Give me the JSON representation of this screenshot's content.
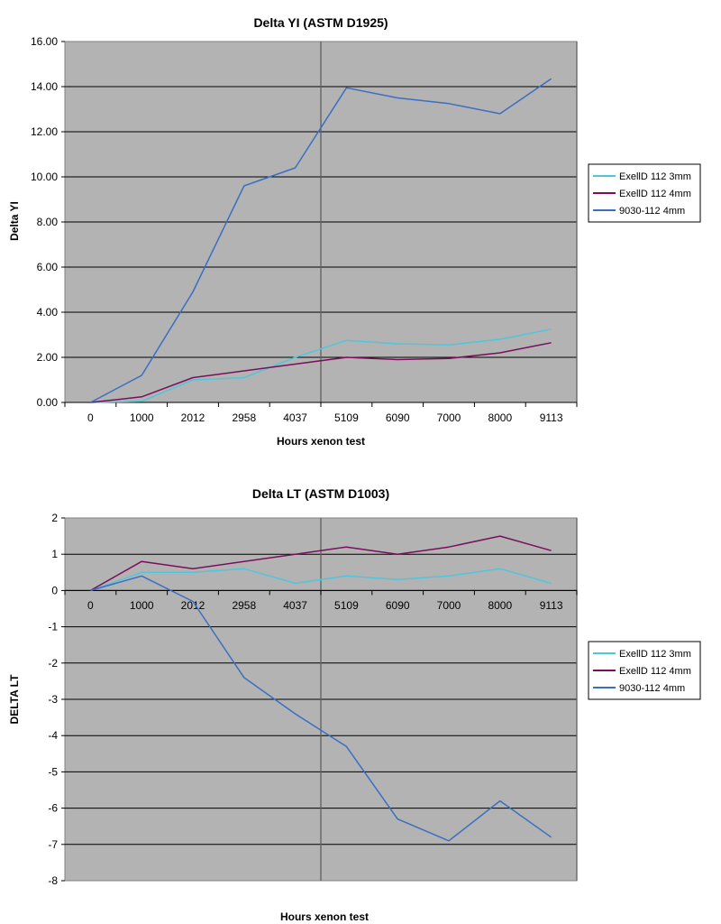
{
  "chart_data": [
    {
      "type": "line",
      "title": "Delta YI (ASTM D1925)",
      "xlabel": "Hours xenon test",
      "ylabel": "Delta YI",
      "categories": [
        "0",
        "1000",
        "2012",
        "2958",
        "4037",
        "5109",
        "6090",
        "7000",
        "8000",
        "9113"
      ],
      "ylim": [
        0,
        16
      ],
      "ytick_step": 2,
      "ytick_labels": [
        "0.00",
        "2.00",
        "4.00",
        "6.00",
        "8.00",
        "10.00",
        "12.00",
        "14.00",
        "16.00"
      ],
      "vertical_markers_at_category": [
        "4037",
        "9113"
      ],
      "plot_background": "#b3b3b3",
      "grid": true,
      "legend_position": "right",
      "series": [
        {
          "name": "ExellD 112 3mm",
          "color": "#4fc6dc",
          "values": [
            0,
            0.05,
            1.0,
            1.1,
            2.0,
            2.75,
            2.6,
            2.55,
            2.8,
            3.25
          ]
        },
        {
          "name": "ExellD 112 4mm",
          "color": "#7b0f5c",
          "values": [
            0,
            0.25,
            1.1,
            1.4,
            1.7,
            2.0,
            1.9,
            1.95,
            2.2,
            2.65
          ]
        },
        {
          "name": "9030-112 4mm",
          "color": "#3a6fc2",
          "values": [
            0,
            1.2,
            4.9,
            9.6,
            10.4,
            13.95,
            13.5,
            13.25,
            12.8,
            14.35
          ]
        }
      ]
    },
    {
      "type": "line",
      "title": "Delta LT (ASTM D1003)",
      "xlabel": "Hours xenon test",
      "ylabel": "DELTA LT",
      "categories": [
        "0",
        "1000",
        "2012",
        "2958",
        "4037",
        "5109",
        "6090",
        "7000",
        "8000",
        "9113"
      ],
      "ylim": [
        -8,
        2
      ],
      "ytick_step": 1,
      "ytick_labels": [
        "-8",
        "-7",
        "-6",
        "-5",
        "-4",
        "-3",
        "-2",
        "-1",
        "0",
        "1",
        "2"
      ],
      "vertical_markers_at_category": [
        "4037",
        "9113"
      ],
      "plot_background": "#b3b3b3",
      "grid": true,
      "legend_position": "right",
      "series": [
        {
          "name": "ExellD 112 3mm",
          "color": "#4fc6dc",
          "values": [
            0,
            0.5,
            0.5,
            0.6,
            0.2,
            0.4,
            0.3,
            0.4,
            0.6,
            0.2
          ]
        },
        {
          "name": "ExellD 112 4mm",
          "color": "#7b0f5c",
          "values": [
            0,
            0.8,
            0.6,
            0.8,
            1.0,
            1.2,
            1.0,
            1.2,
            1.5,
            1.1
          ]
        },
        {
          "name": "9030-112 4mm",
          "color": "#3a6fc2",
          "values": [
            0,
            0.4,
            -0.3,
            -2.4,
            -3.4,
            -4.3,
            -6.3,
            -6.9,
            -5.8,
            -6.8
          ]
        }
      ]
    }
  ]
}
